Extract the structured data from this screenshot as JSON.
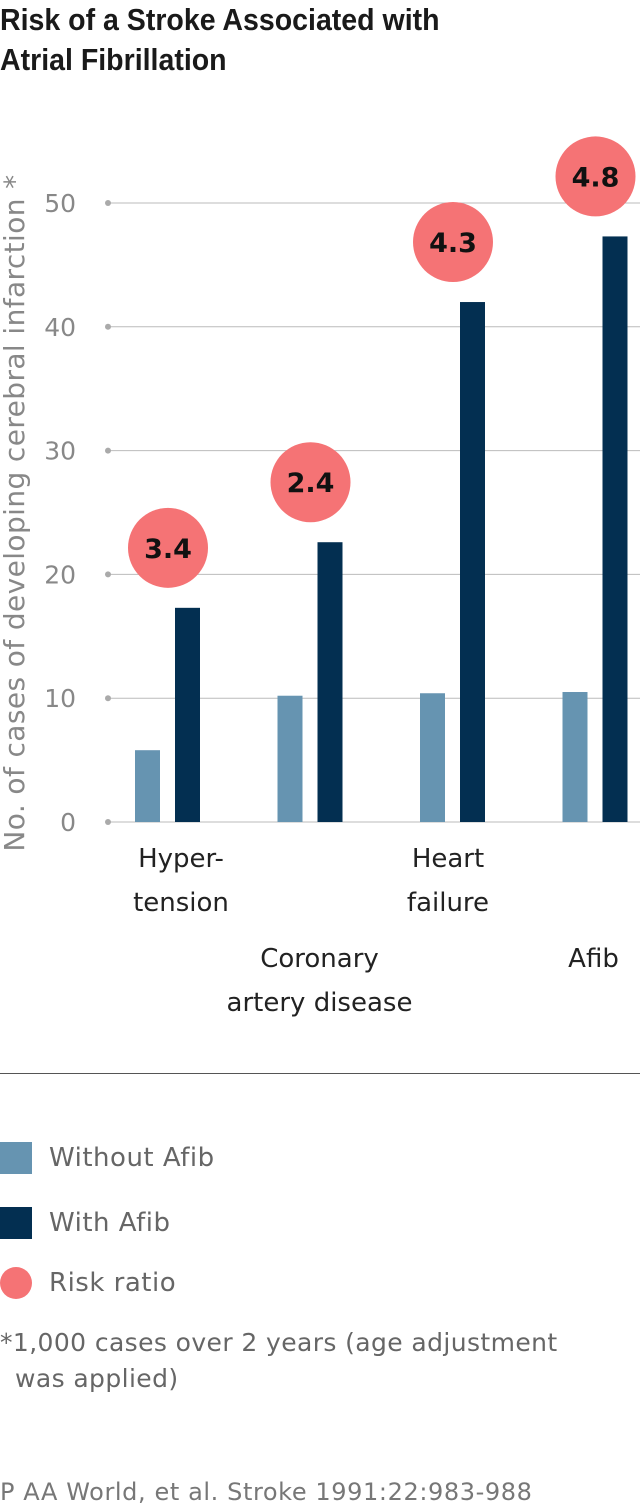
{
  "title": {
    "line1": "Risk of a Stroke Associated with",
    "line2": "Atrial Fibrillation"
  },
  "colors": {
    "without_afib": "#6694b1",
    "with_afib": "#032f51",
    "risk_ratio": "#f57375",
    "grid": "#bbbbbb",
    "axis_text": "#888888"
  },
  "chart_data": {
    "type": "bar",
    "ylabel": "No. of cases of developing cerebral infarction *",
    "ylim": [
      0,
      50
    ],
    "yticks": [
      0,
      10,
      20,
      30,
      40,
      50
    ],
    "grid": true,
    "categories": [
      {
        "lines": [
          "Hyper-",
          "tension"
        ]
      },
      {
        "lines": [
          "Coronary",
          "artery disease"
        ]
      },
      {
        "lines": [
          "Heart",
          "failure"
        ]
      },
      {
        "lines": [
          "Afib"
        ]
      }
    ],
    "series": [
      {
        "name": "Without Afib",
        "values": [
          5.8,
          10.2,
          10.4,
          10.5
        ]
      },
      {
        "name": "With Afib",
        "values": [
          17.3,
          22.6,
          42.0,
          47.3
        ]
      }
    ],
    "risk_ratios": [
      "3.4",
      "2.4",
      "4.3",
      "4.8"
    ]
  },
  "legend": {
    "without_afib": "Without Afib",
    "with_afib": "With Afib",
    "risk_ratio": "Risk ratio"
  },
  "footnote": {
    "line1": "*1,000 cases over 2 years (age adjustment",
    "line2": "was applied)"
  },
  "source": "P AA World, et al. Stroke 1991:22:983-988"
}
